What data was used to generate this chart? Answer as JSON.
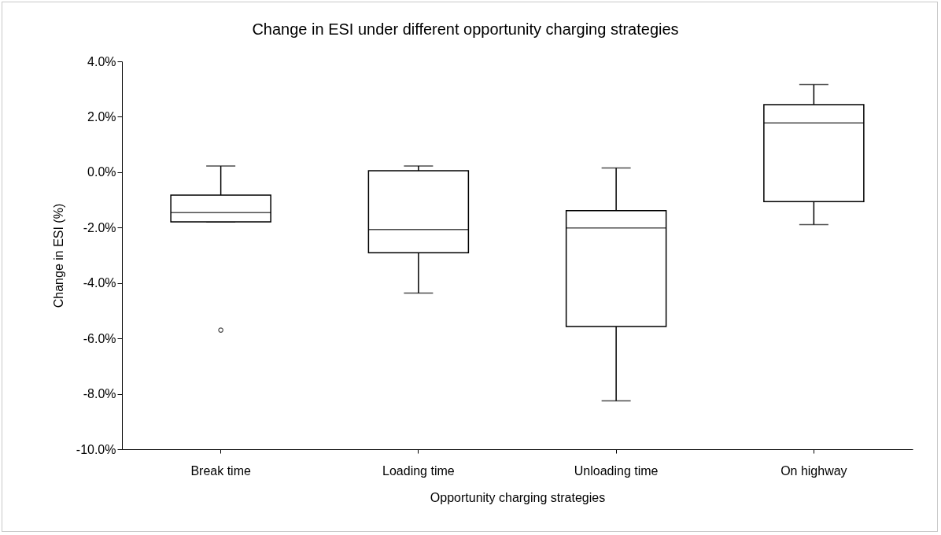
{
  "chart_data": {
    "type": "box",
    "title": "Change in ESI under different opportunity charging strategies",
    "xlabel": "Opportunity charging strategies",
    "ylabel": "Change in ESI (%)",
    "categories": [
      "Break time",
      "Loading time",
      "Unloading time",
      "On highway"
    ],
    "boxes": [
      {
        "low": -1.79,
        "q1": -1.79,
        "median": -1.46,
        "q3": -0.83,
        "high": 0.22,
        "outliers": [
          -5.7
        ]
      },
      {
        "low": -4.36,
        "q1": -2.91,
        "median": -2.07,
        "q3": 0.05,
        "high": 0.22
      },
      {
        "low": -8.25,
        "q1": -5.57,
        "median": -2.01,
        "q3": -1.39,
        "high": 0.15
      },
      {
        "low": -1.89,
        "q1": -1.06,
        "median": 1.78,
        "q3": 2.44,
        "high": 3.16
      }
    ],
    "ylim": [
      -10,
      4
    ],
    "yticks": [
      {
        "value": 4,
        "label": "4.0%"
      },
      {
        "value": 2,
        "label": "2.0%"
      },
      {
        "value": 0,
        "label": "0.0%"
      },
      {
        "value": -2,
        "label": "-2.0%"
      },
      {
        "value": -4,
        "label": "-4.0%"
      },
      {
        "value": -6,
        "label": "-6.0%"
      },
      {
        "value": -8,
        "label": "-8.0%"
      },
      {
        "value": -10,
        "label": "-10.0%"
      }
    ],
    "grid": false
  }
}
